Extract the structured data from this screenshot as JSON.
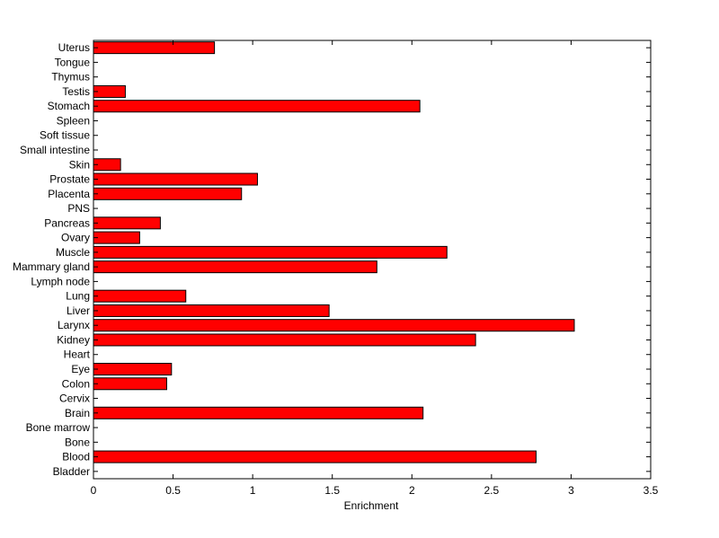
{
  "chart_data": {
    "type": "bar",
    "orientation": "horizontal",
    "title": "",
    "xlabel": "Enrichment",
    "ylabel": "",
    "xlim": [
      0,
      3.5
    ],
    "xticks": [
      0,
      0.5,
      1,
      1.5,
      2,
      2.5,
      3,
      3.5
    ],
    "xtick_labels": [
      "0",
      "0.5",
      "1",
      "1.5",
      "2",
      "2.5",
      "3",
      "3.5"
    ],
    "grid": false,
    "legend": "none",
    "bar_color": "#ff0000",
    "bar_edge_color": "#000000",
    "categories": [
      "Uterus",
      "Tongue",
      "Thymus",
      "Testis",
      "Stomach",
      "Spleen",
      "Soft tissue",
      "Small intestine",
      "Skin",
      "Prostate",
      "Placenta",
      "PNS",
      "Pancreas",
      "Ovary",
      "Muscle",
      "Mammary gland",
      "Lymph node",
      "Lung",
      "Liver",
      "Larynx",
      "Kidney",
      "Heart",
      "Eye",
      "Colon",
      "Cervix",
      "Brain",
      "Bone marrow",
      "Bone",
      "Blood",
      "Bladder"
    ],
    "values": [
      0.76,
      0,
      0,
      0.2,
      2.05,
      0,
      0,
      0,
      0.17,
      1.03,
      0.93,
      0,
      0.42,
      0.29,
      2.22,
      1.78,
      0,
      0.58,
      1.48,
      3.02,
      2.4,
      0,
      0.49,
      0.46,
      0,
      2.07,
      0,
      0,
      2.78,
      0
    ]
  }
}
